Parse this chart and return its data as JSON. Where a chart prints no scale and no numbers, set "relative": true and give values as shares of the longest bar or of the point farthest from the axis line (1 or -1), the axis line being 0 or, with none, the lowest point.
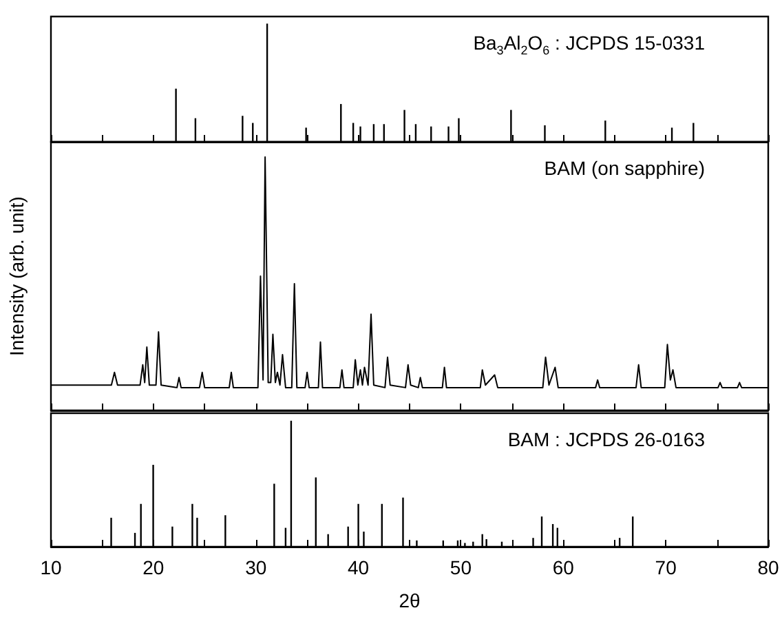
{
  "chart_data": [
    {
      "type": "bar",
      "relative": true,
      "annotations": [
        "Ba$_{3}$Al$_{2}$O$_{6}$ : JCPDS 15-0331"
      ],
      "xlim": [
        10,
        80
      ],
      "xticks": [
        10,
        {
          "value": 15,
          "label": null
        },
        20,
        {
          "value": 25,
          "label": null
        },
        30,
        {
          "value": 35,
          "label": null
        },
        40,
        {
          "value": 45,
          "label": null
        },
        50,
        {
          "value": 55,
          "label": null
        },
        60,
        {
          "value": 65,
          "label": null
        },
        70,
        {
          "value": 75,
          "label": null
        },
        80
      ],
      "tick_labels": false,
      "grid": false,
      "series": [
        {
          "color": "#000000",
          "x": [
            22.2,
            24.1,
            28.7,
            29.7,
            31.1,
            34.9,
            38.3,
            39.5,
            40.2,
            41.5,
            42.5,
            44.5,
            45.6,
            47.1,
            48.8,
            49.8,
            54.9,
            58.2,
            64.1,
            70.6,
            72.7
          ],
          "values": [
            0.45,
            0.2,
            0.22,
            0.16,
            1.0,
            0.12,
            0.32,
            0.16,
            0.13,
            0.15,
            0.15,
            0.27,
            0.15,
            0.13,
            0.13,
            0.2,
            0.27,
            0.14,
            0.18,
            0.12,
            0.16
          ]
        }
      ]
    },
    {
      "type": "line",
      "relative": true,
      "ylabel": "Intensity (arb. unit)",
      "annotations": [
        "BAM (on sapphire)"
      ],
      "xlim": [
        10,
        80
      ],
      "xticks": [
        10,
        {
          "value": 15,
          "label": null
        },
        20,
        {
          "value": 25,
          "label": null
        },
        30,
        {
          "value": 35,
          "label": null
        },
        40,
        {
          "value": 45,
          "label": null
        },
        50,
        {
          "value": 55,
          "label": null
        },
        60,
        {
          "value": 65,
          "label": null
        },
        70,
        {
          "value": 75,
          "label": null
        },
        80
      ],
      "tick_labels": false,
      "grid": false,
      "series": [
        {
          "color": "#000000",
          "x": [
            10,
            13,
            15.9,
            16.2,
            16.5,
            18.7,
            18.96,
            19.15,
            19.36,
            19.6,
            20.25,
            20.5,
            20.75,
            22.3,
            22.5,
            22.7,
            24.5,
            24.76,
            25.0,
            27.4,
            27.6,
            27.8,
            30.2,
            30.45,
            30.7,
            30.9,
            31.2,
            31.45,
            31.66,
            31.9,
            32.1,
            32.35,
            32.6,
            32.9,
            33.5,
            33.76,
            34.0,
            34.8,
            35.0,
            35.2,
            36.1,
            36.3,
            36.5,
            38.2,
            38.4,
            38.6,
            39.5,
            39.7,
            39.95,
            40.2,
            40.4,
            40.6,
            40.95,
            41.24,
            41.5,
            42.6,
            42.85,
            43.1,
            44.6,
            44.85,
            45.1,
            45.85,
            46.05,
            46.25,
            48.2,
            48.4,
            48.6,
            51.9,
            52.1,
            52.4,
            53.3,
            53.6,
            58.0,
            58.27,
            58.6,
            59.2,
            59.5,
            63.15,
            63.35,
            63.55,
            67.1,
            67.35,
            67.6,
            69.9,
            70.16,
            70.45,
            70.7,
            71.0,
            75.1,
            75.3,
            75.5,
            77.0,
            77.2,
            77.4,
            80
          ],
          "values": [
            0.1,
            0.1,
            0.1,
            0.15,
            0.1,
            0.1,
            0.18,
            0.11,
            0.25,
            0.1,
            0.1,
            0.31,
            0.1,
            0.09,
            0.13,
            0.09,
            0.09,
            0.15,
            0.09,
            0.09,
            0.15,
            0.09,
            0.09,
            0.53,
            0.12,
            1.0,
            0.11,
            0.11,
            0.3,
            0.11,
            0.15,
            0.1,
            0.22,
            0.09,
            0.09,
            0.5,
            0.09,
            0.09,
            0.15,
            0.09,
            0.09,
            0.27,
            0.09,
            0.09,
            0.16,
            0.09,
            0.09,
            0.2,
            0.1,
            0.16,
            0.1,
            0.17,
            0.1,
            0.38,
            0.1,
            0.09,
            0.21,
            0.1,
            0.09,
            0.18,
            0.1,
            0.09,
            0.13,
            0.09,
            0.09,
            0.17,
            0.09,
            0.09,
            0.16,
            0.1,
            0.14,
            0.09,
            0.09,
            0.21,
            0.1,
            0.17,
            0.09,
            0.09,
            0.12,
            0.09,
            0.09,
            0.18,
            0.09,
            0.09,
            0.26,
            0.12,
            0.16,
            0.09,
            0.09,
            0.11,
            0.09,
            0.09,
            0.11,
            0.09,
            0.09
          ]
        }
      ]
    },
    {
      "type": "bar",
      "relative": true,
      "xlabel": "2θ",
      "annotations": [
        "BAM : JCPDS 26-0163"
      ],
      "xlim": [
        10,
        80
      ],
      "xticks": [
        10,
        {
          "value": 15,
          "label": null
        },
        20,
        {
          "value": 25,
          "label": null
        },
        30,
        {
          "value": 35,
          "label": null
        },
        40,
        {
          "value": 45,
          "label": null
        },
        50,
        {
          "value": 55,
          "label": null
        },
        60,
        {
          "value": 65,
          "label": null
        },
        70,
        {
          "value": 75,
          "label": null
        },
        80
      ],
      "tick_labels": "x",
      "grid": false,
      "series": [
        {
          "color": "#000000",
          "x": [
            15.88,
            18.2,
            18.78,
            19.98,
            21.85,
            23.8,
            24.27,
            27.02,
            31.79,
            32.9,
            33.44,
            35.85,
            37.05,
            39.0,
            40.0,
            40.53,
            42.3,
            44.36,
            45.7,
            48.28,
            49.7,
            50.4,
            51.2,
            52.1,
            52.5,
            54.0,
            57.06,
            57.9,
            58.98,
            59.43,
            65.5,
            66.78
          ],
          "values": [
            0.23,
            0.11,
            0.34,
            0.65,
            0.16,
            0.34,
            0.23,
            0.25,
            0.5,
            0.15,
            1.0,
            0.55,
            0.1,
            0.16,
            0.34,
            0.12,
            0.34,
            0.39,
            0.05,
            0.05,
            0.05,
            0.03,
            0.04,
            0.1,
            0.06,
            0.04,
            0.07,
            0.24,
            0.18,
            0.15,
            0.07,
            0.24
          ]
        }
      ]
    }
  ]
}
